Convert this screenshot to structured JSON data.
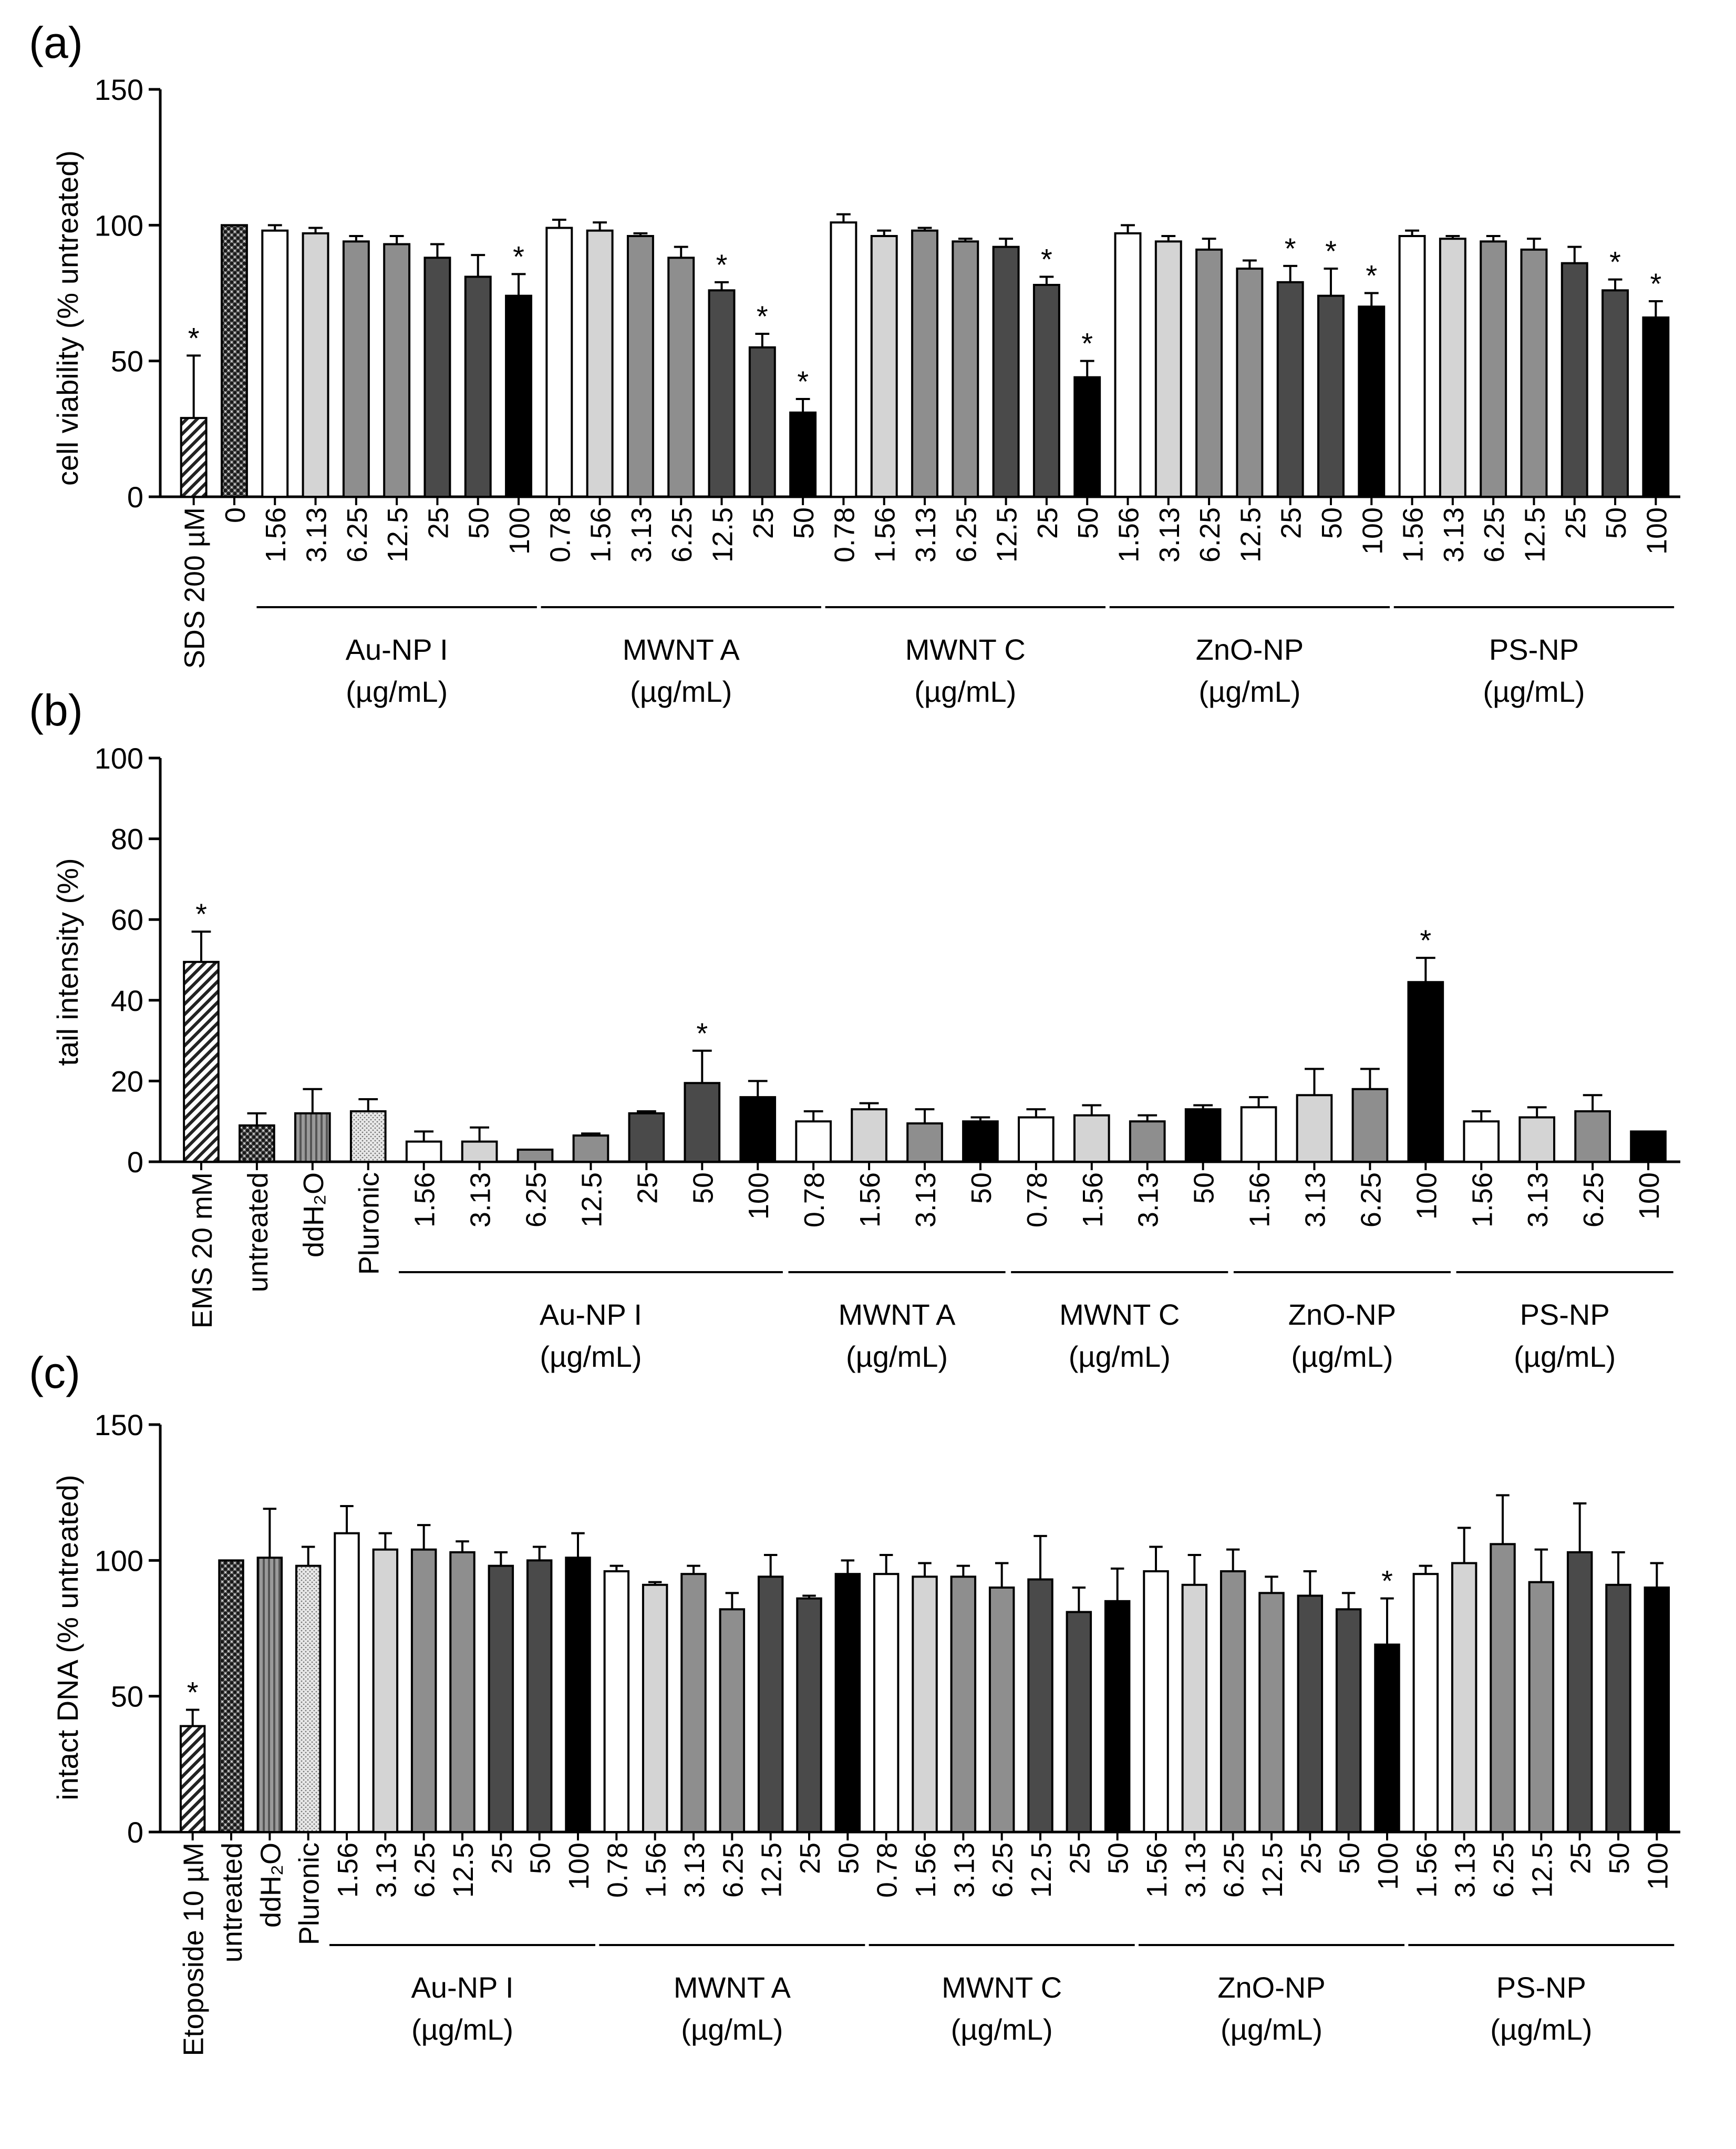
{
  "panels": [
    {
      "letter": "(a)",
      "ylabel": "cell viability (% untreated)",
      "ylim": [
        0,
        150
      ],
      "yticks": [
        0,
        50,
        100,
        150
      ],
      "bars": [
        {
          "label": "SDS 200 µM",
          "value": 29,
          "err": 23,
          "pattern": "hatch",
          "star": true,
          "gap": 0
        },
        {
          "label": "0",
          "value": 100,
          "err": 0,
          "pattern": "check",
          "star": false,
          "gap": 0
        },
        {
          "label": "1.56",
          "value": 98,
          "err": 2,
          "pattern": "white",
          "star": false,
          "gap": 0
        },
        {
          "label": "3.13",
          "value": 97,
          "err": 2,
          "pattern": "light",
          "star": false,
          "gap": 0
        },
        {
          "label": "6.25",
          "value": 94,
          "err": 2,
          "pattern": "mid",
          "star": false,
          "gap": 0
        },
        {
          "label": "12.5",
          "value": 93,
          "err": 3,
          "pattern": "mid",
          "star": false,
          "gap": 0
        },
        {
          "label": "25",
          "value": 88,
          "err": 5,
          "pattern": "dark",
          "star": false,
          "gap": 0
        },
        {
          "label": "50",
          "value": 81,
          "err": 8,
          "pattern": "dark",
          "star": false,
          "gap": 0
        },
        {
          "label": "100",
          "value": 74,
          "err": 8,
          "pattern": "black",
          "star": true,
          "gap": 0
        },
        {
          "label": "0.78",
          "value": 99,
          "err": 3,
          "pattern": "white",
          "star": false,
          "gap": 0
        },
        {
          "label": "1.56",
          "value": 98,
          "err": 3,
          "pattern": "light",
          "star": false,
          "gap": 0
        },
        {
          "label": "3.13",
          "value": 96,
          "err": 1,
          "pattern": "mid",
          "star": false,
          "gap": 0
        },
        {
          "label": "6.25",
          "value": 88,
          "err": 4,
          "pattern": "mid",
          "star": false,
          "gap": 0
        },
        {
          "label": "12.5",
          "value": 76,
          "err": 3,
          "pattern": "dark",
          "star": true,
          "gap": 0
        },
        {
          "label": "25",
          "value": 55,
          "err": 5,
          "pattern": "dark",
          "star": true,
          "gap": 0
        },
        {
          "label": "50",
          "value": 31,
          "err": 5,
          "pattern": "black",
          "star": true,
          "gap": 0
        },
        {
          "label": "0.78",
          "value": 101,
          "err": 3,
          "pattern": "white",
          "star": false,
          "gap": 0
        },
        {
          "label": "1.56",
          "value": 96,
          "err": 2,
          "pattern": "light",
          "star": false,
          "gap": 0
        },
        {
          "label": "3.13",
          "value": 98,
          "err": 1,
          "pattern": "mid",
          "star": false,
          "gap": 0
        },
        {
          "label": "6.25",
          "value": 94,
          "err": 1,
          "pattern": "mid",
          "star": false,
          "gap": 0
        },
        {
          "label": "12.5",
          "value": 92,
          "err": 3,
          "pattern": "dark",
          "star": false,
          "gap": 0
        },
        {
          "label": "25",
          "value": 78,
          "err": 3,
          "pattern": "dark",
          "star": true,
          "gap": 0
        },
        {
          "label": "50",
          "value": 44,
          "err": 6,
          "pattern": "black",
          "star": true,
          "gap": 0
        },
        {
          "label": "1.56",
          "value": 97,
          "err": 3,
          "pattern": "white",
          "star": false,
          "gap": 0
        },
        {
          "label": "3.13",
          "value": 94,
          "err": 2,
          "pattern": "light",
          "star": false,
          "gap": 0
        },
        {
          "label": "6.25",
          "value": 91,
          "err": 4,
          "pattern": "mid",
          "star": false,
          "gap": 0
        },
        {
          "label": "12.5",
          "value": 84,
          "err": 3,
          "pattern": "mid",
          "star": false,
          "gap": 0
        },
        {
          "label": "25",
          "value": 79,
          "err": 6,
          "pattern": "dark",
          "star": true,
          "gap": 0
        },
        {
          "label": "50",
          "value": 74,
          "err": 10,
          "pattern": "dark",
          "star": true,
          "gap": 0
        },
        {
          "label": "100",
          "value": 70,
          "err": 5,
          "pattern": "black",
          "star": true,
          "gap": 0
        },
        {
          "label": "1.56",
          "value": 96,
          "err": 2,
          "pattern": "white",
          "star": false,
          "gap": 0
        },
        {
          "label": "3.13",
          "value": 95,
          "err": 1,
          "pattern": "light",
          "star": false,
          "gap": 0
        },
        {
          "label": "6.25",
          "value": 94,
          "err": 2,
          "pattern": "mid",
          "star": false,
          "gap": 0
        },
        {
          "label": "12.5",
          "value": 91,
          "err": 4,
          "pattern": "mid",
          "star": false,
          "gap": 0
        },
        {
          "label": "25",
          "value": 86,
          "err": 6,
          "pattern": "dark",
          "star": false,
          "gap": 0
        },
        {
          "label": "50",
          "value": 76,
          "err": 4,
          "pattern": "dark",
          "star": true,
          "gap": 0
        },
        {
          "label": "100",
          "value": 66,
          "err": 6,
          "pattern": "black",
          "star": true,
          "gap": 0
        }
      ],
      "groups": [
        {
          "name": "Au-NP I",
          "unit": "(µg/mL)",
          "from": 2,
          "to": 8
        },
        {
          "name": "MWNT A",
          "unit": "(µg/mL)",
          "from": 9,
          "to": 15
        },
        {
          "name": "MWNT C",
          "unit": "(µg/mL)",
          "from": 16,
          "to": 22
        },
        {
          "name": "ZnO-NP",
          "unit": "(µg/mL)",
          "from": 23,
          "to": 29
        },
        {
          "name": "PS-NP",
          "unit": "(µg/mL)",
          "from": 30,
          "to": 36
        }
      ]
    },
    {
      "letter": "(b)",
      "ylabel": "tail intensity (%)",
      "ylim": [
        0,
        100
      ],
      "yticks": [
        0,
        20,
        40,
        60,
        80,
        100
      ],
      "bars": [
        {
          "label": "EMS 20 mM",
          "value": 49.5,
          "err": 7.5,
          "pattern": "hatch",
          "star": true,
          "gap": 0
        },
        {
          "label": "untreated",
          "value": 9,
          "err": 3,
          "pattern": "check",
          "star": false,
          "gap": 0
        },
        {
          "label": "ddH₂O",
          "value": 12,
          "err": 6,
          "pattern": "vlines",
          "star": false,
          "gap": 0
        },
        {
          "label": "Pluronic",
          "value": 12.5,
          "err": 3,
          "pattern": "dots",
          "star": false,
          "gap": 0
        },
        {
          "label": "1.56",
          "value": 5,
          "err": 2.5,
          "pattern": "white",
          "star": false,
          "gap": 0
        },
        {
          "label": "3.13",
          "value": 5,
          "err": 3.5,
          "pattern": "light",
          "star": false,
          "gap": 0
        },
        {
          "label": "6.25",
          "value": 3,
          "err": 0,
          "pattern": "mid",
          "star": false,
          "gap": 0
        },
        {
          "label": "12.5",
          "value": 6.5,
          "err": 0.5,
          "pattern": "mid",
          "star": false,
          "gap": 0
        },
        {
          "label": "25",
          "value": 12,
          "err": 0.5,
          "pattern": "dark",
          "star": false,
          "gap": 0
        },
        {
          "label": "50",
          "value": 19.5,
          "err": 8,
          "pattern": "dark",
          "star": true,
          "gap": 0
        },
        {
          "label": "100",
          "value": 16,
          "err": 4,
          "pattern": "black",
          "star": false,
          "gap": 0
        },
        {
          "label": "0.78",
          "value": 10,
          "err": 2.5,
          "pattern": "white",
          "star": false,
          "gap": 0
        },
        {
          "label": "1.56",
          "value": 13,
          "err": 1.5,
          "pattern": "light",
          "star": false,
          "gap": 0
        },
        {
          "label": "3.13",
          "value": 9.5,
          "err": 3.5,
          "pattern": "mid",
          "star": false,
          "gap": 0
        },
        {
          "label": "50",
          "value": 10,
          "err": 1,
          "pattern": "black",
          "star": false,
          "gap": 0
        },
        {
          "label": "0.78",
          "value": 11,
          "err": 2,
          "pattern": "white",
          "star": false,
          "gap": 0
        },
        {
          "label": "1.56",
          "value": 11.5,
          "err": 2.5,
          "pattern": "light",
          "star": false,
          "gap": 0
        },
        {
          "label": "3.13",
          "value": 10,
          "err": 1.5,
          "pattern": "mid",
          "star": false,
          "gap": 0
        },
        {
          "label": "50",
          "value": 13,
          "err": 1,
          "pattern": "black",
          "star": false,
          "gap": 0
        },
        {
          "label": "1.56",
          "value": 13.5,
          "err": 2.5,
          "pattern": "white",
          "star": false,
          "gap": 0
        },
        {
          "label": "3.13",
          "value": 16.5,
          "err": 6.5,
          "pattern": "light",
          "star": false,
          "gap": 0
        },
        {
          "label": "6.25",
          "value": 18,
          "err": 5,
          "pattern": "mid",
          "star": false,
          "gap": 0
        },
        {
          "label": "100",
          "value": 44.5,
          "err": 6,
          "pattern": "black",
          "star": true,
          "gap": 0
        },
        {
          "label": "1.56",
          "value": 10,
          "err": 2.5,
          "pattern": "white",
          "star": false,
          "gap": 0
        },
        {
          "label": "3.13",
          "value": 11,
          "err": 2.5,
          "pattern": "light",
          "star": false,
          "gap": 0
        },
        {
          "label": "6.25",
          "value": 12.5,
          "err": 4,
          "pattern": "mid",
          "star": false,
          "gap": 0
        },
        {
          "label": "100",
          "value": 7.5,
          "err": 0,
          "pattern": "black",
          "star": false,
          "gap": 0
        }
      ],
      "groups": [
        {
          "name": "Au-NP I",
          "unit": "(µg/mL)",
          "from": 4,
          "to": 10
        },
        {
          "name": "MWNT A",
          "unit": "(µg/mL)",
          "from": 11,
          "to": 14
        },
        {
          "name": "MWNT C",
          "unit": "(µg/mL)",
          "from": 15,
          "to": 18
        },
        {
          "name": "ZnO-NP",
          "unit": "(µg/mL)",
          "from": 19,
          "to": 22
        },
        {
          "name": "PS-NP",
          "unit": "(µg/mL)",
          "from": 23,
          "to": 26
        }
      ]
    },
    {
      "letter": "(c)",
      "ylabel": "intact DNA (% untreated)",
      "ylim": [
        0,
        150
      ],
      "yticks": [
        0,
        50,
        100,
        150
      ],
      "bars": [
        {
          "label": "Etoposide 10 µM",
          "value": 39,
          "err": 6,
          "pattern": "hatch",
          "star": true,
          "gap": 0
        },
        {
          "label": "untreated",
          "value": 100,
          "err": 0,
          "pattern": "check",
          "star": false,
          "gap": 0
        },
        {
          "label": "ddH₂O",
          "value": 101,
          "err": 18,
          "pattern": "vlines",
          "star": false,
          "gap": 0
        },
        {
          "label": "Pluronic",
          "value": 98,
          "err": 7,
          "pattern": "dots",
          "star": false,
          "gap": 0
        },
        {
          "label": "1.56",
          "value": 110,
          "err": 10,
          "pattern": "white",
          "star": false,
          "gap": 0
        },
        {
          "label": "3.13",
          "value": 104,
          "err": 6,
          "pattern": "light",
          "star": false,
          "gap": 0
        },
        {
          "label": "6.25",
          "value": 104,
          "err": 9,
          "pattern": "mid",
          "star": false,
          "gap": 0
        },
        {
          "label": "12.5",
          "value": 103,
          "err": 4,
          "pattern": "mid",
          "star": false,
          "gap": 0
        },
        {
          "label": "25",
          "value": 98,
          "err": 5,
          "pattern": "dark",
          "star": false,
          "gap": 0
        },
        {
          "label": "50",
          "value": 100,
          "err": 5,
          "pattern": "dark",
          "star": false,
          "gap": 0
        },
        {
          "label": "100",
          "value": 101,
          "err": 9,
          "pattern": "black",
          "star": false,
          "gap": 0
        },
        {
          "label": "0.78",
          "value": 96,
          "err": 2,
          "pattern": "white",
          "star": false,
          "gap": 0
        },
        {
          "label": "1.56",
          "value": 91,
          "err": 1,
          "pattern": "light",
          "star": false,
          "gap": 0
        },
        {
          "label": "3.13",
          "value": 95,
          "err": 3,
          "pattern": "mid",
          "star": false,
          "gap": 0
        },
        {
          "label": "6.25",
          "value": 82,
          "err": 6,
          "pattern": "mid",
          "star": false,
          "gap": 0
        },
        {
          "label": "12.5",
          "value": 94,
          "err": 8,
          "pattern": "dark",
          "star": false,
          "gap": 0
        },
        {
          "label": "25",
          "value": 86,
          "err": 1,
          "pattern": "dark",
          "star": false,
          "gap": 0
        },
        {
          "label": "50",
          "value": 95,
          "err": 5,
          "pattern": "black",
          "star": false,
          "gap": 0
        },
        {
          "label": "0.78",
          "value": 95,
          "err": 7,
          "pattern": "white",
          "star": false,
          "gap": 0
        },
        {
          "label": "1.56",
          "value": 94,
          "err": 5,
          "pattern": "light",
          "star": false,
          "gap": 0
        },
        {
          "label": "3.13",
          "value": 94,
          "err": 4,
          "pattern": "mid",
          "star": false,
          "gap": 0
        },
        {
          "label": "6.25",
          "value": 90,
          "err": 9,
          "pattern": "mid",
          "star": false,
          "gap": 0
        },
        {
          "label": "12.5",
          "value": 93,
          "err": 16,
          "pattern": "dark",
          "star": false,
          "gap": 0
        },
        {
          "label": "25",
          "value": 81,
          "err": 9,
          "pattern": "dark",
          "star": false,
          "gap": 0
        },
        {
          "label": "50",
          "value": 85,
          "err": 12,
          "pattern": "black",
          "star": false,
          "gap": 0
        },
        {
          "label": "1.56",
          "value": 96,
          "err": 9,
          "pattern": "white",
          "star": false,
          "gap": 0
        },
        {
          "label": "3.13",
          "value": 91,
          "err": 11,
          "pattern": "light",
          "star": false,
          "gap": 0
        },
        {
          "label": "6.25",
          "value": 96,
          "err": 8,
          "pattern": "mid",
          "star": false,
          "gap": 0
        },
        {
          "label": "12.5",
          "value": 88,
          "err": 6,
          "pattern": "mid",
          "star": false,
          "gap": 0
        },
        {
          "label": "25",
          "value": 87,
          "err": 9,
          "pattern": "dark",
          "star": false,
          "gap": 0
        },
        {
          "label": "50",
          "value": 82,
          "err": 6,
          "pattern": "dark",
          "star": false,
          "gap": 0
        },
        {
          "label": "100",
          "value": 69,
          "err": 17,
          "pattern": "black",
          "star": true,
          "gap": 0
        },
        {
          "label": "1.56",
          "value": 95,
          "err": 3,
          "pattern": "white",
          "star": false,
          "gap": 0
        },
        {
          "label": "3.13",
          "value": 99,
          "err": 13,
          "pattern": "light",
          "star": false,
          "gap": 0
        },
        {
          "label": "6.25",
          "value": 106,
          "err": 18,
          "pattern": "mid",
          "star": false,
          "gap": 0
        },
        {
          "label": "12.5",
          "value": 92,
          "err": 12,
          "pattern": "mid",
          "star": false,
          "gap": 0
        },
        {
          "label": "25",
          "value": 103,
          "err": 18,
          "pattern": "dark",
          "star": false,
          "gap": 0
        },
        {
          "label": "50",
          "value": 91,
          "err": 12,
          "pattern": "dark",
          "star": false,
          "gap": 0
        },
        {
          "label": "100",
          "value": 90,
          "err": 9,
          "pattern": "black",
          "star": false,
          "gap": 0
        }
      ],
      "groups": [
        {
          "name": "Au-NP I",
          "unit": "(µg/mL)",
          "from": 4,
          "to": 10
        },
        {
          "name": "MWNT A",
          "unit": "(µg/mL)",
          "from": 11,
          "to": 17
        },
        {
          "name": "MWNT C",
          "unit": "(µg/mL)",
          "from": 18,
          "to": 24
        },
        {
          "name": "ZnO-NP",
          "unit": "(µg/mL)",
          "from": 25,
          "to": 31
        },
        {
          "name": "PS-NP",
          "unit": "(µg/mL)",
          "from": 32,
          "to": 38
        }
      ]
    }
  ],
  "colors": {
    "white": "#ffffff",
    "light": "#d4d4d4",
    "mid": "#8e8e8e",
    "dark": "#4a4a4a",
    "black": "#000000",
    "axis": "#000000"
  },
  "significance_marker": "*"
}
